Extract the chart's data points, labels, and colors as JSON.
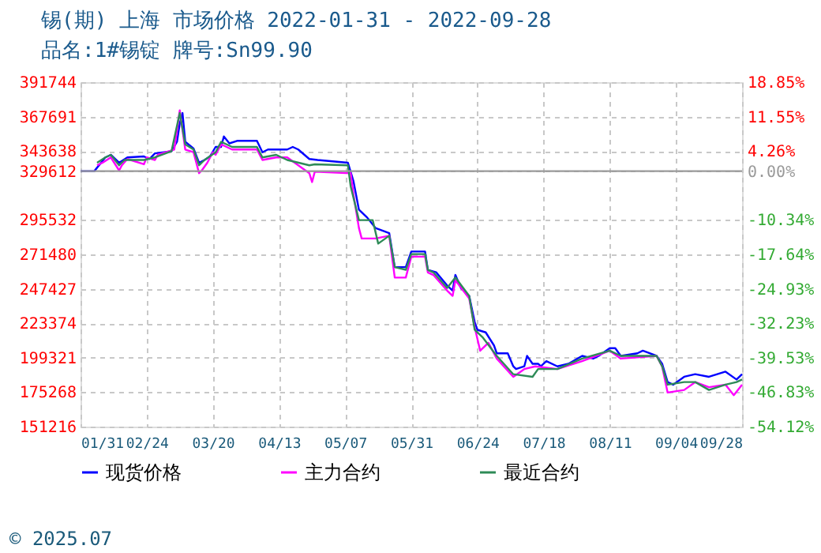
{
  "chart_data": {
    "type": "line",
    "title": "锡(期) 上海 市场价格 2022-01-31 - 2022-09-28",
    "subtitle": "品名:1#锡锭 牌号:Sn99.90",
    "xlim": [
      "2022-01-31",
      "2022-09-28"
    ],
    "xticks": [
      {
        "value": "2022-01-31",
        "label": "01/31"
      },
      {
        "value": "2022-02-24",
        "label": "02/24"
      },
      {
        "value": "2022-03-20",
        "label": "03/20"
      },
      {
        "value": "2022-04-13",
        "label": "04/13"
      },
      {
        "value": "2022-05-07",
        "label": "05/07"
      },
      {
        "value": "2022-05-31",
        "label": "05/31"
      },
      {
        "value": "2022-06-24",
        "label": "06/24"
      },
      {
        "value": "2022-07-18",
        "label": "07/18"
      },
      {
        "value": "2022-08-11",
        "label": "08/11"
      },
      {
        "value": "2022-09-04",
        "label": "09/04"
      },
      {
        "value": "2022-09-28",
        "label": "09/28"
      }
    ],
    "ylim": [
      151216,
      391744
    ],
    "yticks": [
      151216,
      175268,
      199321,
      223374,
      247427,
      271480,
      295532,
      329612,
      343638,
      367691,
      391744
    ],
    "y2lim": [
      -54.12,
      18.85
    ],
    "y2ticks": [
      {
        "value": -54.12,
        "label": "-54.12%"
      },
      {
        "value": -46.83,
        "label": "-46.83%"
      },
      {
        "value": -39.53,
        "label": "-39.53%"
      },
      {
        "value": -32.23,
        "label": "-32.23%"
      },
      {
        "value": -24.93,
        "label": "-24.93%"
      },
      {
        "value": -17.64,
        "label": "-17.64%"
      },
      {
        "value": -10.34,
        "label": "-10.34%"
      },
      {
        "value": 0,
        "label": "0.00%"
      },
      {
        "value": 4.26,
        "label": "4.26%"
      },
      {
        "value": 11.55,
        "label": "11.55%"
      },
      {
        "value": 18.85,
        "label": "18.85%"
      }
    ],
    "ref_lines": [
      {
        "axis": "y2",
        "value": 0,
        "color": "#999999"
      }
    ],
    "grid": true,
    "legend": "bottom",
    "marker": "none",
    "line_style": "solid",
    "annotations": [
      "© 2025.07"
    ],
    "series": [
      {
        "name": "现货价格",
        "color": "#0000ff",
        "x": [
          "2022-01-31",
          "2022-02-05",
          "2022-02-09",
          "2022-02-11",
          "2022-02-14",
          "2022-02-17",
          "2022-02-23",
          "2022-02-25",
          "2022-02-27",
          "2022-03-05",
          "2022-03-07",
          "2022-03-08",
          "2022-03-09",
          "2022-03-10",
          "2022-03-13",
          "2022-03-15",
          "2022-03-17",
          "2022-03-19",
          "2022-03-21",
          "2022-03-23",
          "2022-03-24",
          "2022-03-26",
          "2022-03-29",
          "2022-04-05",
          "2022-04-07",
          "2022-04-09",
          "2022-04-16",
          "2022-04-18",
          "2022-04-20",
          "2022-04-24",
          "2022-04-27",
          "2022-05-08",
          "2022-05-10",
          "2022-05-12",
          "2022-05-15",
          "2022-05-18",
          "2022-05-23",
          "2022-05-25",
          "2022-05-29",
          "2022-05-31",
          "2022-06-05",
          "2022-06-06",
          "2022-06-09",
          "2022-06-13",
          "2022-06-15",
          "2022-06-16",
          "2022-06-18",
          "2022-06-21",
          "2022-06-23",
          "2022-06-24",
          "2022-06-27",
          "2022-06-30",
          "2022-07-01",
          "2022-07-05",
          "2022-07-07",
          "2022-07-08",
          "2022-07-11",
          "2022-07-12",
          "2022-07-14",
          "2022-07-16",
          "2022-07-17",
          "2022-07-19",
          "2022-07-23",
          "2022-07-27",
          "2022-08-01",
          "2022-08-05",
          "2022-08-07",
          "2022-08-11",
          "2022-08-13",
          "2022-08-15",
          "2022-08-21",
          "2022-08-23",
          "2022-08-28",
          "2022-08-30",
          "2022-09-01",
          "2022-09-03",
          "2022-09-07",
          "2022-09-11",
          "2022-09-16",
          "2022-09-22",
          "2022-09-26",
          "2022-09-28"
        ],
        "values": [
          329612,
          329612,
          339200,
          341000,
          335500,
          339200,
          339900,
          338100,
          342000,
          343500,
          350100,
          362900,
          370200,
          350100,
          345400,
          335500,
          337400,
          339900,
          346500,
          346500,
          353800,
          349000,
          350800,
          350800,
          342800,
          344700,
          344700,
          346500,
          344700,
          338100,
          337400,
          335500,
          322800,
          302700,
          297200,
          289900,
          286300,
          262600,
          262600,
          273500,
          273500,
          260700,
          259000,
          249800,
          246200,
          257100,
          248000,
          242500,
          224300,
          218800,
          217000,
          207900,
          202400,
          202400,
          193300,
          191400,
          193300,
          200600,
          195100,
          195100,
          193300,
          196900,
          193300,
          195100,
          200600,
          198700,
          200600,
          206000,
          206000,
          200600,
          202400,
          204200,
          200600,
          195100,
          182300,
          180500,
          186000,
          187800,
          186000,
          189600,
          184100,
          187800
        ]
      },
      {
        "name": "主力合约",
        "color": "#ff00ff",
        "x": [
          "2022-02-06",
          "2022-02-08",
          "2022-02-11",
          "2022-02-14",
          "2022-02-15",
          "2022-02-17",
          "2022-02-23",
          "2022-02-24",
          "2022-02-27",
          "2022-02-28",
          "2022-03-06",
          "2022-03-08",
          "2022-03-10",
          "2022-03-13",
          "2022-03-15",
          "2022-03-16",
          "2022-03-18",
          "2022-03-20",
          "2022-03-21",
          "2022-03-23",
          "2022-03-27",
          "2022-04-05",
          "2022-04-07",
          "2022-04-12",
          "2022-04-16",
          "2022-04-24",
          "2022-04-25",
          "2022-04-26",
          "2022-05-09",
          "2022-05-10",
          "2022-05-12",
          "2022-05-13",
          "2022-05-18",
          "2022-05-23",
          "2022-05-25",
          "2022-05-29",
          "2022-05-31",
          "2022-06-05",
          "2022-06-06",
          "2022-06-08",
          "2022-06-13",
          "2022-06-15",
          "2022-06-16",
          "2022-06-21",
          "2022-06-23",
          "2022-06-25",
          "2022-06-28",
          "2022-07-01",
          "2022-07-07",
          "2022-07-11",
          "2022-07-15",
          "2022-07-23",
          "2022-08-01",
          "2022-08-11",
          "2022-08-15",
          "2022-08-28",
          "2022-08-30",
          "2022-09-01",
          "2022-09-07",
          "2022-09-11",
          "2022-09-16",
          "2022-09-22",
          "2022-09-25",
          "2022-09-28"
        ],
        "values": [
          333700,
          335500,
          339200,
          330100,
          333700,
          338100,
          334400,
          339200,
          337400,
          341000,
          344700,
          372000,
          344700,
          342800,
          328200,
          330100,
          335500,
          342800,
          341000,
          348300,
          344700,
          344700,
          337400,
          339200,
          339200,
          328200,
          322000,
          329300,
          328200,
          313600,
          289900,
          282600,
          282600,
          284500,
          255300,
          255300,
          269900,
          269900,
          258900,
          257100,
          246200,
          242500,
          253400,
          240700,
          220600,
          204200,
          209700,
          198700,
          186000,
          191400,
          193300,
          191400,
          196900,
          204200,
          198700,
          200600,
          193300,
          175000,
          176800,
          182300,
          178700,
          180500,
          173200,
          180500
        ]
      },
      {
        "name": "最近合约",
        "color": "#2e8b57",
        "x": [
          "2022-02-06",
          "2022-02-09",
          "2022-02-11",
          "2022-02-14",
          "2022-02-16",
          "2022-02-23",
          "2022-02-27",
          "2022-03-05",
          "2022-03-08",
          "2022-03-10",
          "2022-03-13",
          "2022-03-15",
          "2022-03-17",
          "2022-03-21",
          "2022-03-23",
          "2022-03-27",
          "2022-04-05",
          "2022-04-07",
          "2022-04-12",
          "2022-04-16",
          "2022-04-24",
          "2022-04-26",
          "2022-05-08",
          "2022-05-09",
          "2022-05-12",
          "2022-05-17",
          "2022-05-19",
          "2022-05-23",
          "2022-05-25",
          "2022-05-29",
          "2022-05-31",
          "2022-06-05",
          "2022-06-06",
          "2022-06-08",
          "2022-06-13",
          "2022-06-16",
          "2022-06-21",
          "2022-06-23",
          "2022-06-26",
          "2022-07-01",
          "2022-07-07",
          "2022-07-14",
          "2022-07-16",
          "2022-07-23",
          "2022-08-01",
          "2022-08-11",
          "2022-08-15",
          "2022-08-28",
          "2022-08-30",
          "2022-09-01",
          "2022-09-07",
          "2022-09-11",
          "2022-09-16",
          "2022-09-22",
          "2022-09-26",
          "2022-09-28"
        ],
        "values": [
          335500,
          339200,
          341000,
          333700,
          337400,
          337400,
          339200,
          343500,
          370200,
          348300,
          344700,
          333700,
          337400,
          342800,
          350100,
          346500,
          346500,
          339200,
          341000,
          337400,
          333700,
          334400,
          333700,
          319100,
          295400,
          295400,
          279000,
          284500,
          262600,
          260700,
          271700,
          271700,
          260700,
          258900,
          248000,
          255300,
          242500,
          218800,
          213300,
          200600,
          187800,
          186000,
          191400,
          191400,
          198700,
          204200,
          200600,
          200600,
          193300,
          180500,
          182300,
          182300,
          176800,
          180500,
          182300,
          184100
        ]
      }
    ]
  }
}
